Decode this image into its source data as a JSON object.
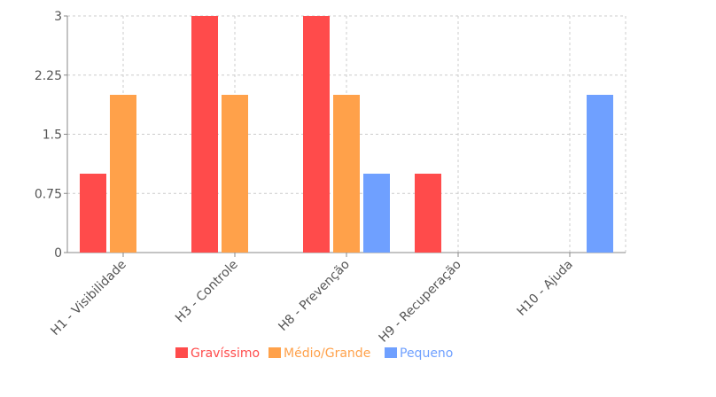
{
  "chart_data": {
    "type": "bar",
    "categories": [
      "H1 - Visibilidade",
      "H3 - Controle",
      "H8 - Prevenção",
      "H9 - Recuperação",
      "H10 - Ajuda"
    ],
    "series": [
      {
        "name": "Gravíssimo",
        "color": "#ff4b4b",
        "values": [
          1,
          3,
          3,
          1,
          0
        ]
      },
      {
        "name": "Médio/Grande",
        "color": "#ffa14a",
        "values": [
          2,
          2,
          2,
          0,
          0
        ]
      },
      {
        "name": "Pequeno",
        "color": "#6fa0ff",
        "values": [
          0,
          0,
          1,
          0,
          2
        ]
      }
    ],
    "y_ticks": [
      "0",
      "0.75",
      "1.5",
      "2.25",
      "3"
    ],
    "ylim": [
      0,
      3
    ],
    "grid": true,
    "legend_position": "bottom-center",
    "title": "",
    "xlabel": "",
    "ylabel": ""
  }
}
